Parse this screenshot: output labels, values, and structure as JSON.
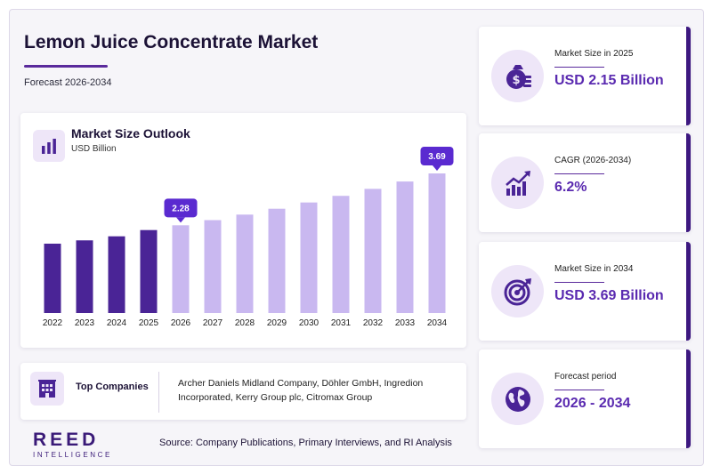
{
  "header": {
    "title": "Lemon Juice Concentrate Market",
    "subtitle": "Forecast 2026-2034"
  },
  "chart_panel": {
    "title": "Market Size Outlook",
    "unit": "USD Billion"
  },
  "chart_data": {
    "type": "bar",
    "categories": [
      "2022",
      "2023",
      "2024",
      "2025",
      "2026",
      "2027",
      "2028",
      "2029",
      "2030",
      "2031",
      "2032",
      "2033",
      "2034"
    ],
    "values": [
      1.78,
      1.87,
      1.98,
      2.15,
      2.28,
      2.42,
      2.57,
      2.73,
      2.9,
      3.08,
      3.27,
      3.47,
      3.69
    ],
    "data_labels": {
      "2026": "2.28",
      "2034": "3.69"
    },
    "historical_color": "#4a2496",
    "forecast_color": "#c9b8f0",
    "callout_color": "#5a2ad0",
    "ylim": [
      0,
      3.9
    ],
    "grid": false,
    "legend": "none"
  },
  "companies": {
    "label": "Top Companies",
    "text": "Archer Daniels Midland Company, Döhler GmbH, Ingredion Incorporated, Kerry Group plc, Citromax Group"
  },
  "kpis": [
    {
      "label": "Market Size in 2025",
      "value": "USD 2.15 Billion",
      "icon": "money-bag-icon"
    },
    {
      "label": "CAGR (2026-2034)",
      "value": "6.2%",
      "icon": "growth-chart-icon"
    },
    {
      "label": "Market Size in 2034",
      "value": "USD 3.69 Billion",
      "icon": "target-icon"
    },
    {
      "label": "Forecast period",
      "value": "2026 - 2034",
      "icon": "globe-icon"
    }
  ],
  "footer": {
    "logo_main": "REED",
    "logo_sub": "INTELLIGENCE",
    "source": "Source: Company Publications, Primary Interviews, and RI Analysis"
  },
  "colors": {
    "accent": "#5a2ab0",
    "dark_purple": "#3d1880",
    "icon_bg": "#eee6f8"
  }
}
